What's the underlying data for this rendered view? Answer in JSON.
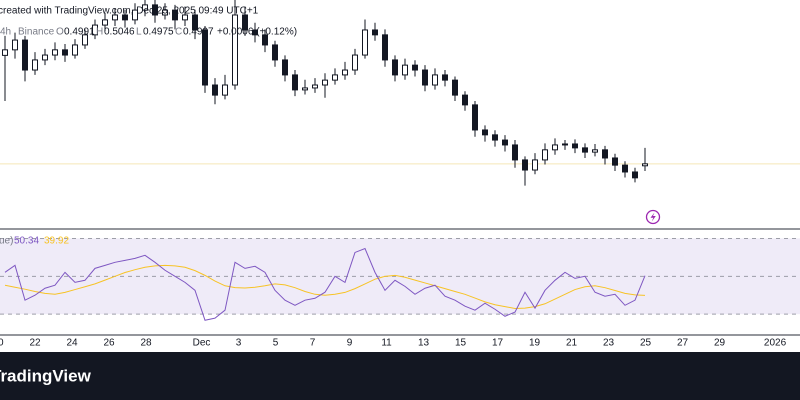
{
  "chart_data": {
    "type": "candlestick",
    "title": "created with TradingView.com, Dec 25, 2025 09:49 UTC+1",
    "interval": "4h",
    "exchange": "Binance",
    "ohlc_labels": [
      "O",
      "H",
      "L",
      "C"
    ],
    "change": "+0.0006 (+0.12%)",
    "color": "#131722",
    "ylim": [
      0.48,
      0.55
    ],
    "candles": [
      [
        0.533,
        0.539,
        0.519,
        0.5347
      ],
      [
        0.5347,
        0.54,
        0.532,
        0.5377
      ],
      [
        0.5377,
        0.539,
        0.525,
        0.5285
      ],
      [
        0.5285,
        0.534,
        0.527,
        0.5316
      ],
      [
        0.5316,
        0.535,
        0.53,
        0.5331
      ],
      [
        0.5331,
        0.537,
        0.5315,
        0.5347
      ],
      [
        0.5347,
        0.5365,
        0.531,
        0.5331
      ],
      [
        0.5331,
        0.538,
        0.532,
        0.5362
      ],
      [
        0.5362,
        0.541,
        0.535,
        0.5393
      ],
      [
        0.5393,
        0.544,
        0.538,
        0.5423
      ],
      [
        0.5423,
        0.546,
        0.5405,
        0.5439
      ],
      [
        0.5439,
        0.5475,
        0.542,
        0.5454
      ],
      [
        0.5454,
        0.547,
        0.5415,
        0.5439
      ],
      [
        0.5439,
        0.549,
        0.5425,
        0.5469
      ],
      [
        0.5469,
        0.55,
        0.545,
        0.5485
      ],
      [
        0.5485,
        0.55,
        0.543,
        0.5454
      ],
      [
        0.5454,
        0.549,
        0.544,
        0.5469
      ],
      [
        0.5469,
        0.5485,
        0.541,
        0.5439
      ],
      [
        0.5439,
        0.548,
        0.542,
        0.5454
      ],
      [
        0.5454,
        0.547,
        0.538,
        0.5408
      ],
      [
        0.5408,
        0.542,
        0.5215,
        0.5239
      ],
      [
        0.5239,
        0.526,
        0.518,
        0.5208
      ],
      [
        0.5208,
        0.527,
        0.5195,
        0.5239
      ],
      [
        0.5239,
        0.55,
        0.5225,
        0.5454
      ],
      [
        0.5454,
        0.548,
        0.539,
        0.5408
      ],
      [
        0.5408,
        0.543,
        0.537,
        0.5393
      ],
      [
        0.5393,
        0.541,
        0.534,
        0.5362
      ],
      [
        0.5362,
        0.5375,
        0.5295,
        0.5316
      ],
      [
        0.5316,
        0.533,
        0.525,
        0.527
      ],
      [
        0.527,
        0.5285,
        0.5205,
        0.5224
      ],
      [
        0.5224,
        0.5255,
        0.521,
        0.523
      ],
      [
        0.523,
        0.526,
        0.5215,
        0.5239
      ],
      [
        0.5239,
        0.5275,
        0.52,
        0.5254
      ],
      [
        0.5254,
        0.529,
        0.524,
        0.527
      ],
      [
        0.527,
        0.531,
        0.5255,
        0.5285
      ],
      [
        0.5285,
        0.535,
        0.527,
        0.5331
      ],
      [
        0.5331,
        0.544,
        0.532,
        0.5408
      ],
      [
        0.5408,
        0.543,
        0.5375,
        0.5393
      ],
      [
        0.5393,
        0.541,
        0.5295,
        0.5316
      ],
      [
        0.5316,
        0.533,
        0.525,
        0.527
      ],
      [
        0.527,
        0.532,
        0.5255,
        0.53
      ],
      [
        0.53,
        0.5315,
        0.5265,
        0.5285
      ],
      [
        0.5285,
        0.53,
        0.522,
        0.5239
      ],
      [
        0.5239,
        0.529,
        0.5225,
        0.527
      ],
      [
        0.527,
        0.5285,
        0.5235,
        0.5254
      ],
      [
        0.5254,
        0.5265,
        0.519,
        0.5208
      ],
      [
        0.5208,
        0.522,
        0.516,
        0.5178
      ],
      [
        0.5178,
        0.519,
        0.508,
        0.5101
      ],
      [
        0.5101,
        0.5115,
        0.5065,
        0.5086
      ],
      [
        0.5086,
        0.51,
        0.505,
        0.507
      ],
      [
        0.507,
        0.5085,
        0.5035,
        0.5055
      ],
      [
        0.5055,
        0.507,
        0.4985,
        0.5009
      ],
      [
        0.5009,
        0.502,
        0.493,
        0.4978
      ],
      [
        0.4978,
        0.503,
        0.4965,
        0.5009
      ],
      [
        0.5009,
        0.506,
        0.4995,
        0.504
      ],
      [
        0.504,
        0.5075,
        0.5025,
        0.5055
      ],
      [
        0.5055,
        0.507,
        0.504,
        0.5058
      ],
      [
        0.5058,
        0.5072,
        0.503,
        0.5046
      ],
      [
        0.5046,
        0.506,
        0.5015,
        0.5033
      ],
      [
        0.5033,
        0.5058,
        0.502,
        0.504
      ],
      [
        0.504,
        0.5052,
        0.4995,
        0.5015
      ],
      [
        0.5015,
        0.5028,
        0.4975,
        0.4993
      ],
      [
        0.4993,
        0.5005,
        0.4955,
        0.4972
      ],
      [
        0.4972,
        0.4985,
        0.494,
        0.4954
      ],
      [
        0.4991,
        0.5046,
        0.4975,
        0.4997
      ]
    ],
    "xlim": [
      0,
      43.35
    ],
    "xticks": [
      {
        "value": 0,
        "label": "20"
      },
      {
        "value": 2,
        "label": "22"
      },
      {
        "value": 4,
        "label": "24"
      },
      {
        "value": 6,
        "label": "26"
      },
      {
        "value": 8,
        "label": "28"
      },
      {
        "value": 11,
        "label": "Dec"
      },
      {
        "value": 13,
        "label": "3"
      },
      {
        "value": 15,
        "label": "5"
      },
      {
        "value": 17,
        "label": "7"
      },
      {
        "value": 19,
        "label": "9"
      },
      {
        "value": 21,
        "label": "11"
      },
      {
        "value": 23,
        "label": "13"
      },
      {
        "value": 25,
        "label": "15"
      },
      {
        "value": 27,
        "label": "17"
      },
      {
        "value": 29,
        "label": "19"
      },
      {
        "value": 31,
        "label": "21"
      },
      {
        "value": 33,
        "label": "23"
      },
      {
        "value": 35,
        "label": "25"
      },
      {
        "value": 37,
        "label": "27"
      },
      {
        "value": 39,
        "label": "29"
      },
      {
        "value": 42,
        "label": "2026"
      }
    ],
    "rsi": {
      "label": "ue)",
      "ylim": [
        19,
        75
      ],
      "levels": [
        70,
        50,
        30
      ],
      "line": {
        "color": "#7e57c2",
        "values": [
          52.1,
          55.8,
          37.4,
          40.0,
          43.7,
          45.3,
          52.1,
          46.8,
          47.9,
          54.2,
          55.8,
          57.4,
          58.4,
          59.5,
          61.1,
          57.4,
          53.2,
          50.0,
          46.8,
          42.6,
          26.8,
          27.9,
          32.1,
          57.4,
          54.2,
          55.3,
          52.1,
          42.6,
          37.4,
          34.7,
          37.4,
          38.4,
          41.6,
          50.0,
          46.8,
          62.6,
          64.7,
          52.1,
          42.6,
          47.9,
          44.7,
          40.5,
          43.7,
          45.3,
          39.5,
          37.4,
          34.2,
          32.1,
          35.8,
          32.6,
          28.9,
          31.1,
          41.6,
          33.2,
          42.6,
          47.9,
          52.1,
          48.9,
          50.0,
          41.6,
          39.5,
          40.5,
          34.7,
          37.4,
          50.34
        ]
      },
      "signal": {
        "color": "#f7c325",
        "values": [
          45.3,
          44.2,
          43.2,
          42.0,
          41.0,
          40.5,
          41.5,
          43.0,
          44.5,
          46.0,
          48.0,
          50.0,
          52.0,
          53.5,
          54.8,
          55.5,
          55.8,
          55.5,
          54.8,
          53.0,
          50.5,
          47.5,
          45.0,
          44.0,
          43.8,
          44.2,
          45.0,
          46.0,
          45.5,
          44.0,
          42.0,
          40.5,
          40.0,
          40.5,
          41.5,
          43.5,
          46.0,
          48.5,
          50.0,
          50.5,
          49.5,
          48.0,
          46.5,
          45.0,
          43.5,
          42.0,
          40.5,
          38.5,
          36.5,
          35.0,
          34.0,
          33.0,
          33.2,
          34.0,
          35.5,
          38.0,
          40.5,
          43.0,
          44.5,
          45.0,
          44.0,
          42.5,
          41.0,
          40.2,
          39.92
        ]
      }
    },
    "brand": "TradingView"
  }
}
